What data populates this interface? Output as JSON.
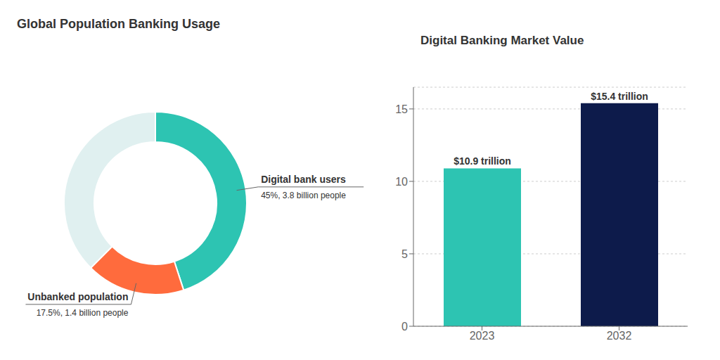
{
  "chart_data": [
    {
      "type": "pie",
      "title": "Global Population Banking Usage",
      "categories": [
        "Digital bank users",
        "Unbanked population",
        null
      ],
      "values": [
        45.0,
        17.5,
        37.5
      ],
      "value_labels": [
        "45%, 3.8 billion people",
        "17.5%, 1.4 billion people",
        null
      ],
      "colors": [
        "#2DC4B2",
        "#FF6B3D",
        "#E0F0F0"
      ],
      "data_labels": true
    },
    {
      "type": "bar",
      "title": "Digital Banking Market Value",
      "categories": [
        "2023",
        "2032"
      ],
      "values": [
        10.9,
        15.4
      ],
      "value_labels": [
        "$10.9 trillion",
        "$15.4 trillion"
      ],
      "colors": [
        "#2DC4B2",
        "#0D1B4B"
      ],
      "ylim": [
        0,
        16.5
      ],
      "yticks": [
        0,
        5,
        10,
        15
      ],
      "grid": true,
      "data_labels": true
    }
  ]
}
